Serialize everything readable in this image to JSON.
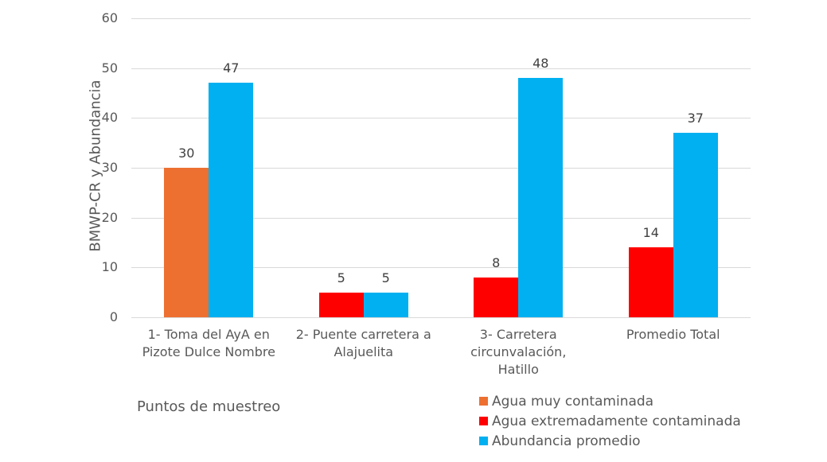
{
  "chart_data": {
    "type": "bar",
    "title": "",
    "xlabel": "Puntos de muestreo",
    "ylabel": "BMWP-CR y Abundancia",
    "ylim": [
      0,
      60
    ],
    "yticks": [
      0,
      10,
      20,
      30,
      40,
      50,
      60
    ],
    "grid": true,
    "legend_position": "bottom-right",
    "categories": [
      "1- Toma del AyA en\nPizote Dulce Nombre",
      "2- Puente carretera a\nAlajuelita",
      "3- Carretera\ncircunvalación,\nHatillo",
      "Promedio Total"
    ],
    "bars": [
      [
        {
          "series": "Agua muy contaminada",
          "value": 30,
          "color": "#ED7031"
        },
        {
          "series": "Abundancia promedio",
          "value": 47,
          "color": "#00B0F0"
        }
      ],
      [
        {
          "series": "Agua extremadamente contaminada",
          "value": 5,
          "color": "#FF0000"
        },
        {
          "series": "Abundancia promedio",
          "value": 5,
          "color": "#00B0F0"
        }
      ],
      [
        {
          "series": "Agua extremadamente contaminada",
          "value": 8,
          "color": "#FF0000"
        },
        {
          "series": "Abundancia promedio",
          "value": 48,
          "color": "#00B0F0"
        }
      ],
      [
        {
          "series": "Agua extremadamente contaminada",
          "value": 14,
          "color": "#FF0000"
        },
        {
          "series": "Abundancia promedio",
          "value": 37,
          "color": "#00B0F0"
        }
      ]
    ],
    "legend": [
      {
        "name": "Agua muy contaminada",
        "color": "#ED7031"
      },
      {
        "name": "Agua extremadamente contaminada",
        "color": "#FF0000"
      },
      {
        "name": "Abundancia promedio",
        "color": "#00B0F0"
      }
    ]
  }
}
